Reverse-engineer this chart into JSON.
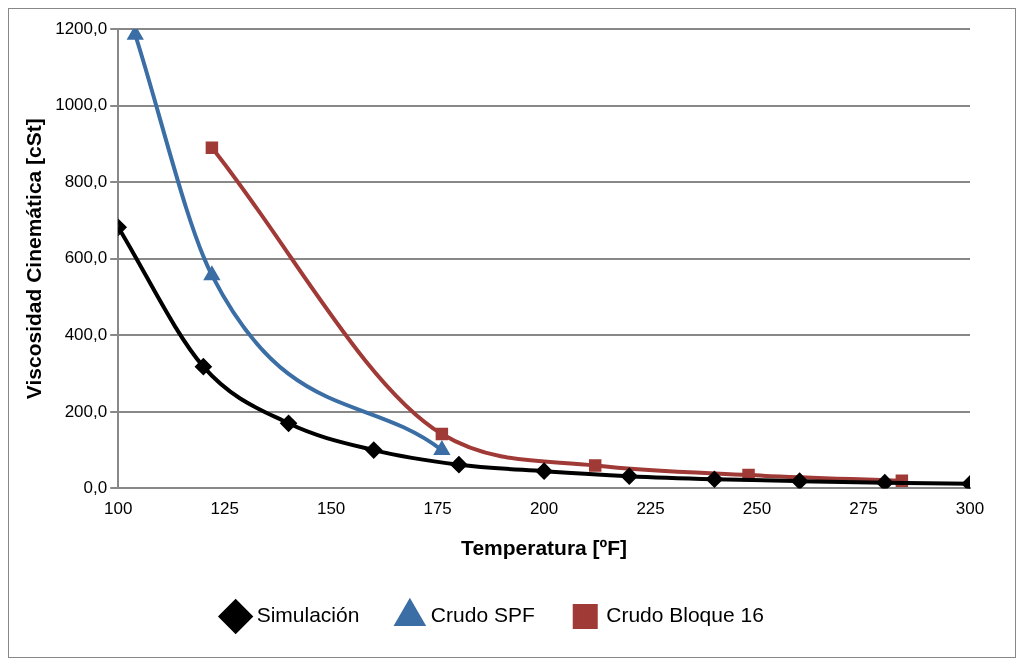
{
  "chart_data": {
    "type": "line",
    "xlabel": "Temperatura [ºF]",
    "ylabel": "Viscosidad Cinemática [cSt]",
    "xlim": [
      100,
      300
    ],
    "xticks": [
      100,
      125,
      150,
      175,
      200,
      225,
      250,
      275,
      300
    ],
    "ylim": [
      0,
      1200
    ],
    "yticks": [
      {
        "value": 0,
        "label": "0,0"
      },
      {
        "value": 200,
        "label": "200,0"
      },
      {
        "value": 400,
        "label": "400,0"
      },
      {
        "value": 600,
        "label": "600,0"
      },
      {
        "value": 800,
        "label": "800,0"
      },
      {
        "value": 1000,
        "label": "1000,0"
      },
      {
        "value": 1200,
        "label": "1200,0"
      }
    ],
    "grid": "y",
    "legend": "bottom",
    "series": [
      {
        "name": "Simulación",
        "color": "#000000",
        "marker": "diamond",
        "x": [
          100,
          120,
          140,
          160,
          180,
          200,
          220,
          240,
          260,
          280,
          300
        ],
        "values": [
          682,
          318,
          170,
          100,
          62,
          45,
          32,
          24,
          19,
          15,
          12
        ]
      },
      {
        "name": "Crudo SPF",
        "color": "#3a6ea5",
        "marker": "triangle",
        "x": [
          104,
          122,
          176
        ],
        "values": [
          1185,
          557,
          100
        ]
      },
      {
        "name": "Crudo Bloque 16",
        "color": "#a03a37",
        "marker": "square",
        "x": [
          122,
          176,
          212,
          248,
          284
        ],
        "values": [
          890,
          142,
          60,
          35,
          20
        ]
      }
    ]
  }
}
